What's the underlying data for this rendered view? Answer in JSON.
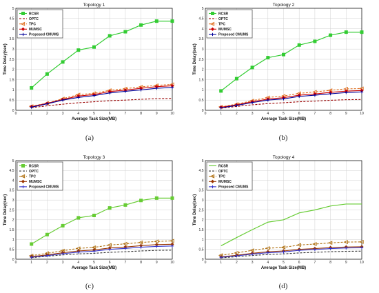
{
  "chart_data": [
    {
      "type": "line",
      "caption": "(a)",
      "title": "Topology 1",
      "xlabel": "Average Task Size(MB)",
      "ylabel": "Time Delay(sec)",
      "xlim": [
        0,
        10
      ],
      "ylim": [
        0,
        5
      ],
      "xticks": [
        "0",
        "1",
        "2",
        "3",
        "4",
        "5",
        "6",
        "7",
        "8",
        "9",
        "10"
      ],
      "yticks": [
        "0",
        "0.5",
        "1",
        "1.5",
        "2",
        "2.5",
        "3",
        "3.5",
        "4",
        "4.5",
        "5"
      ],
      "grid": true,
      "legend": "top-left",
      "x": [
        1,
        2,
        3,
        4,
        5,
        6,
        7,
        8,
        9,
        10
      ],
      "series": [
        {
          "name": "RCSR",
          "color": "#33cc33",
          "marker": "square",
          "dash": "solid",
          "values": [
            1.1,
            1.78,
            2.37,
            2.95,
            3.1,
            3.65,
            3.85,
            4.18,
            4.37,
            4.37
          ]
        },
        {
          "name": "OPTC",
          "color": "#990000",
          "marker": "none",
          "dash": "dashed",
          "values": [
            0.13,
            0.22,
            0.3,
            0.37,
            0.42,
            0.47,
            0.5,
            0.54,
            0.57,
            0.58
          ]
        },
        {
          "name": "TPC",
          "color": "#e07020",
          "marker": "triangle",
          "dash": "dashed",
          "values": [
            0.2,
            0.35,
            0.57,
            0.77,
            0.83,
            0.98,
            1.06,
            1.15,
            1.22,
            1.27
          ]
        },
        {
          "name": "MUMSC",
          "color": "#cc0000",
          "marker": "diamond",
          "dash": "solid",
          "values": [
            0.18,
            0.34,
            0.53,
            0.7,
            0.77,
            0.92,
            0.99,
            1.08,
            1.16,
            1.2
          ]
        },
        {
          "name": "Proposed CMUMS",
          "color": "#000099",
          "marker": "plus",
          "dash": "solid",
          "values": [
            0.15,
            0.32,
            0.5,
            0.63,
            0.72,
            0.85,
            0.93,
            1.0,
            1.08,
            1.12
          ]
        }
      ]
    },
    {
      "type": "line",
      "caption": "(b)",
      "title": "Topology 2",
      "xlabel": "Average Task Size(MB)",
      "ylabel": "Time Delay(sec)",
      "xlim": [
        0,
        10
      ],
      "ylim": [
        0,
        5
      ],
      "xticks": [
        "0",
        "1",
        "2",
        "3",
        "4",
        "5",
        "6",
        "7",
        "8",
        "9",
        "10"
      ],
      "yticks": [
        "0",
        "0.5",
        "1",
        "1.5",
        "2",
        "2.5",
        "3",
        "3.5",
        "4",
        "4.5",
        "5"
      ],
      "grid": true,
      "legend": "top-left",
      "x": [
        1,
        2,
        3,
        4,
        5,
        6,
        7,
        8,
        9,
        10
      ],
      "series": [
        {
          "name": "RCSR",
          "color": "#33cc33",
          "marker": "square",
          "dash": "solid",
          "values": [
            0.95,
            1.55,
            2.1,
            2.58,
            2.73,
            3.2,
            3.38,
            3.68,
            3.83,
            3.83
          ]
        },
        {
          "name": "OPTC",
          "color": "#990000",
          "marker": "none",
          "dash": "dashed",
          "values": [
            0.1,
            0.19,
            0.27,
            0.33,
            0.37,
            0.42,
            0.45,
            0.49,
            0.52,
            0.53
          ]
        },
        {
          "name": "TPC",
          "color": "#e07020",
          "marker": "triangle",
          "dash": "dashed",
          "values": [
            0.17,
            0.3,
            0.47,
            0.63,
            0.7,
            0.83,
            0.9,
            0.98,
            1.05,
            1.07
          ]
        },
        {
          "name": "MUMSC",
          "color": "#cc0000",
          "marker": "diamond",
          "dash": "solid",
          "values": [
            0.15,
            0.27,
            0.42,
            0.55,
            0.62,
            0.74,
            0.8,
            0.88,
            0.94,
            0.97
          ]
        },
        {
          "name": "Proposed CMUMS",
          "color": "#000099",
          "marker": "plus",
          "dash": "solid",
          "values": [
            0.12,
            0.24,
            0.38,
            0.5,
            0.56,
            0.68,
            0.74,
            0.81,
            0.87,
            0.9
          ]
        }
      ]
    },
    {
      "type": "line",
      "caption": "(c)",
      "title": "Topology 3",
      "xlabel": "Average Task Size(MB)",
      "ylabel": "Time Delay(sec)",
      "xlim": [
        0,
        10
      ],
      "ylim": [
        0,
        5
      ],
      "xticks": [
        "0",
        "1",
        "2",
        "3",
        "4",
        "5",
        "6",
        "7",
        "8",
        "9",
        "10"
      ],
      "yticks": [
        "0",
        "0.5",
        "1",
        "1.5",
        "2",
        "2.5",
        "3",
        "3.5",
        "4",
        "4.5",
        "5"
      ],
      "grid": true,
      "legend": "top-left",
      "x": [
        1,
        2,
        3,
        4,
        5,
        6,
        7,
        8,
        9,
        10
      ],
      "series": [
        {
          "name": "RCSR",
          "color": "#66cc33",
          "marker": "square",
          "dash": "solid",
          "values": [
            0.77,
            1.25,
            1.7,
            2.1,
            2.22,
            2.6,
            2.75,
            2.98,
            3.1,
            3.1
          ]
        },
        {
          "name": "OPTC",
          "color": "#333333",
          "marker": "none",
          "dash": "dashed",
          "values": [
            0.08,
            0.15,
            0.22,
            0.27,
            0.3,
            0.35,
            0.38,
            0.42,
            0.45,
            0.46
          ]
        },
        {
          "name": "TPC",
          "color": "#b07010",
          "marker": "triangle",
          "dash": "dashed",
          "values": [
            0.18,
            0.3,
            0.43,
            0.55,
            0.6,
            0.72,
            0.78,
            0.85,
            0.9,
            0.93
          ]
        },
        {
          "name": "MUMSC",
          "color": "#993300",
          "marker": "diamond",
          "dash": "solid",
          "values": [
            0.13,
            0.22,
            0.33,
            0.42,
            0.47,
            0.57,
            0.62,
            0.69,
            0.74,
            0.76
          ]
        },
        {
          "name": "Proposed CMUMS",
          "color": "#3333cc",
          "marker": "plus",
          "dash": "solid",
          "values": [
            0.1,
            0.18,
            0.28,
            0.36,
            0.41,
            0.5,
            0.55,
            0.61,
            0.65,
            0.67
          ]
        }
      ]
    },
    {
      "type": "line",
      "caption": "(d)",
      "title": "Topology 4",
      "xlabel": "Average Task Size(MB)",
      "ylabel": "Time Delay(sec)",
      "xlim": [
        0,
        10
      ],
      "ylim": [
        0,
        5
      ],
      "xticks": [
        "0",
        "1",
        "2",
        "3",
        "4",
        "5",
        "6",
        "7",
        "8",
        "9",
        "10"
      ],
      "yticks": [
        "0",
        "0.5",
        "1",
        "1.5",
        "2",
        "2.5",
        "3",
        "3.5",
        "4",
        "4.5",
        "5"
      ],
      "grid": true,
      "legend": "top-left",
      "x": [
        1,
        2,
        3,
        4,
        5,
        6,
        7,
        8,
        9,
        10
      ],
      "series": [
        {
          "name": "RCSR",
          "color": "#66cc33",
          "marker": "none",
          "dash": "solid",
          "values": [
            0.68,
            1.1,
            1.5,
            1.88,
            2.0,
            2.35,
            2.5,
            2.7,
            2.8,
            2.8
          ]
        },
        {
          "name": "OPTC",
          "color": "#333333",
          "marker": "none",
          "dash": "dashed",
          "values": [
            0.07,
            0.13,
            0.19,
            0.24,
            0.27,
            0.32,
            0.35,
            0.38,
            0.4,
            0.41
          ]
        },
        {
          "name": "TPC",
          "color": "#b07010",
          "marker": "triangle",
          "dash": "dashed",
          "values": [
            0.2,
            0.32,
            0.45,
            0.56,
            0.6,
            0.72,
            0.77,
            0.83,
            0.87,
            0.88
          ]
        },
        {
          "name": "MUMSC",
          "color": "#993300",
          "marker": "diamond",
          "dash": "solid",
          "values": [
            0.12,
            0.2,
            0.3,
            0.38,
            0.42,
            0.5,
            0.54,
            0.59,
            0.62,
            0.63
          ]
        },
        {
          "name": "Proposed CMUMS",
          "color": "#3333cc",
          "marker": "plus",
          "dash": "solid",
          "values": [
            0.1,
            0.17,
            0.26,
            0.33,
            0.37,
            0.45,
            0.49,
            0.54,
            0.57,
            0.58
          ]
        }
      ]
    }
  ]
}
